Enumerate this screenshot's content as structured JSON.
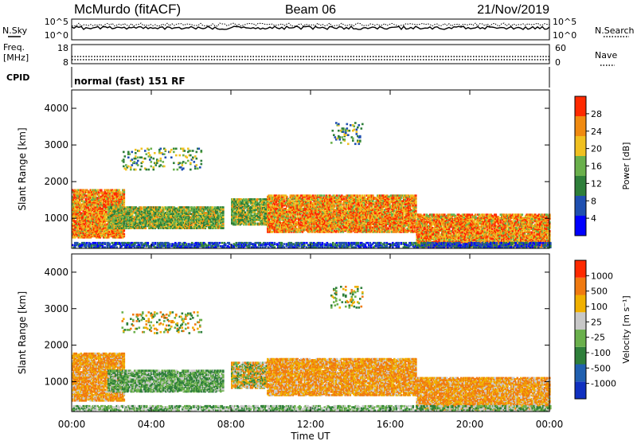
{
  "header": {
    "station": "McMurdo (fitACF)",
    "beam": "Beam 06",
    "date": "21/Nov/2019"
  },
  "status_panels": {
    "nsky_label": "N.Sky",
    "nsearch_label": "N.Search",
    "nsky_ticks": [
      "10^5",
      "10^0"
    ],
    "nsearch_ticks": [
      "10^5",
      "10^0"
    ],
    "freq_label_line1": "Freq.",
    "freq_label_line2": "[MHz]",
    "freq_ticks": [
      "18",
      "8"
    ],
    "nave_label": "Nave",
    "nave_ticks": [
      "60",
      "0"
    ],
    "cpid_label": "CPID",
    "cpid_text": "normal (fast) 151 RF"
  },
  "chart_data": [
    {
      "type": "heatmap",
      "name": "power",
      "ylabel": "Slant Range [km]",
      "xlabel": "Time UT",
      "x_range_hours": [
        0,
        24
      ],
      "y_range_km": [
        180,
        4500
      ],
      "yticks": [
        "4000",
        "3000",
        "2000",
        "1000"
      ],
      "xticks": [
        "00:00",
        "04:00",
        "08:00",
        "12:00",
        "16:00",
        "20:00",
        "00:00"
      ],
      "colorbar": {
        "label": "Power [dB]",
        "ticks": [
          "28",
          "24",
          "20",
          "16",
          "12",
          "8",
          "4"
        ],
        "colors": [
          "#0000ff",
          "#1f4fb0",
          "#2e7f3a",
          "#6ab04c",
          "#f0c020",
          "#f08a10",
          "#ff2a00"
        ]
      },
      "regions": [
        {
          "t0": 0.0,
          "t1": 2.6,
          "r0": 450,
          "r1": 1750,
          "level": "high"
        },
        {
          "t0": 1.8,
          "t1": 7.6,
          "r0": 700,
          "r1": 1300,
          "level": "mid"
        },
        {
          "t0": 2.5,
          "t1": 6.5,
          "r0": 2300,
          "r1": 2900,
          "level": "sparse"
        },
        {
          "t0": 8.0,
          "t1": 9.8,
          "r0": 800,
          "r1": 1500,
          "level": "mid"
        },
        {
          "t0": 9.8,
          "t1": 17.3,
          "r0": 600,
          "r1": 1600,
          "level": "high"
        },
        {
          "t0": 13.0,
          "t1": 14.6,
          "r0": 3000,
          "r1": 3600,
          "level": "sparse"
        },
        {
          "t0": 17.3,
          "t1": 24.0,
          "r0": 200,
          "r1": 1100,
          "level": "high"
        },
        {
          "t0": 0.0,
          "t1": 24.0,
          "r0": 180,
          "r1": 320,
          "level": "ground"
        }
      ]
    },
    {
      "type": "heatmap",
      "name": "velocity",
      "ylabel": "Slant Range [km]",
      "xlabel": "Time UT",
      "x_range_hours": [
        0,
        24
      ],
      "y_range_km": [
        180,
        4500
      ],
      "yticks": [
        "4000",
        "3000",
        "2000",
        "1000"
      ],
      "xticks": [
        "00:00",
        "04:00",
        "08:00",
        "12:00",
        "16:00",
        "20:00",
        "00:00"
      ],
      "colorbar": {
        "label": "Velocity [m s⁻¹]",
        "ticks": [
          "1000",
          "500",
          "100",
          "25",
          "-25",
          "-100",
          "-500",
          "-1000"
        ],
        "colors": [
          "#1030c0",
          "#2060b0",
          "#2e7f3a",
          "#6ab04c",
          "#c8c8c8",
          "#f0b000",
          "#f07a10",
          "#ff2a00"
        ]
      },
      "regions": [
        {
          "t0": 0.0,
          "t1": 2.6,
          "r0": 450,
          "r1": 1750,
          "level": "away"
        },
        {
          "t0": 1.8,
          "t1": 7.6,
          "r0": 700,
          "r1": 1300,
          "level": "toward"
        },
        {
          "t0": 2.5,
          "t1": 6.5,
          "r0": 2300,
          "r1": 2900,
          "level": "sparse"
        },
        {
          "t0": 8.0,
          "t1": 9.8,
          "r0": 800,
          "r1": 1500,
          "level": "mixed"
        },
        {
          "t0": 9.8,
          "t1": 17.3,
          "r0": 600,
          "r1": 1600,
          "level": "away"
        },
        {
          "t0": 13.0,
          "t1": 14.6,
          "r0": 3000,
          "r1": 3600,
          "level": "sparse"
        },
        {
          "t0": 17.3,
          "t1": 24.0,
          "r0": 200,
          "r1": 1100,
          "level": "away"
        },
        {
          "t0": 0.0,
          "t1": 24.0,
          "r0": 180,
          "r1": 320,
          "level": "ground"
        }
      ]
    }
  ]
}
